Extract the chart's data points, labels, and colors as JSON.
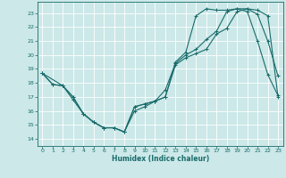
{
  "title": "",
  "xlabel": "Humidex (Indice chaleur)",
  "ylabel": "",
  "xlim": [
    -0.5,
    23.5
  ],
  "ylim": [
    13.5,
    23.8
  ],
  "yticks": [
    14,
    15,
    16,
    17,
    18,
    19,
    20,
    21,
    22,
    23
  ],
  "xticks": [
    0,
    1,
    2,
    3,
    4,
    5,
    6,
    7,
    8,
    9,
    10,
    11,
    12,
    13,
    14,
    15,
    16,
    17,
    18,
    19,
    20,
    21,
    22,
    23
  ],
  "bg_color": "#cce8e8",
  "grid_color": "#ffffff",
  "line_color": "#1a6b6b",
  "line1_x": [
    0,
    1,
    2,
    3,
    4,
    5,
    6,
    7,
    8,
    9,
    10,
    11,
    12,
    13,
    14,
    15,
    16,
    17,
    18,
    19,
    20,
    21,
    22,
    23
  ],
  "line1_y": [
    18.7,
    17.9,
    17.8,
    17.0,
    15.8,
    15.2,
    14.8,
    14.8,
    14.5,
    16.3,
    16.5,
    16.7,
    17.0,
    19.3,
    19.8,
    20.1,
    20.4,
    21.5,
    21.9,
    23.1,
    23.3,
    23.2,
    22.8,
    17.0
  ],
  "line2_x": [
    0,
    1,
    2,
    3,
    4,
    5,
    6,
    7,
    8,
    9,
    10,
    11,
    12,
    13,
    14,
    15,
    16,
    17,
    18,
    19,
    20,
    21,
    22,
    23
  ],
  "line2_y": [
    18.7,
    17.9,
    17.8,
    17.0,
    15.8,
    15.2,
    14.8,
    14.8,
    14.5,
    16.0,
    16.3,
    16.7,
    17.5,
    19.4,
    20.0,
    20.4,
    21.1,
    21.7,
    23.1,
    23.3,
    23.3,
    22.9,
    21.0,
    18.5
  ],
  "line3_x": [
    0,
    2,
    3,
    4,
    5,
    6,
    7,
    8,
    9,
    10,
    11,
    12,
    13,
    14,
    15,
    16,
    17,
    18,
    19,
    20,
    21,
    22,
    23
  ],
  "line3_y": [
    18.7,
    17.8,
    16.8,
    15.8,
    15.2,
    14.8,
    14.8,
    14.5,
    16.3,
    16.5,
    16.7,
    17.0,
    19.5,
    20.2,
    22.8,
    23.3,
    23.2,
    23.2,
    23.3,
    23.1,
    21.0,
    18.6,
    17.1
  ],
  "tick_fontsize": 4.5,
  "xlabel_fontsize": 5.5,
  "marker_size": 2.5,
  "linewidth": 0.8
}
